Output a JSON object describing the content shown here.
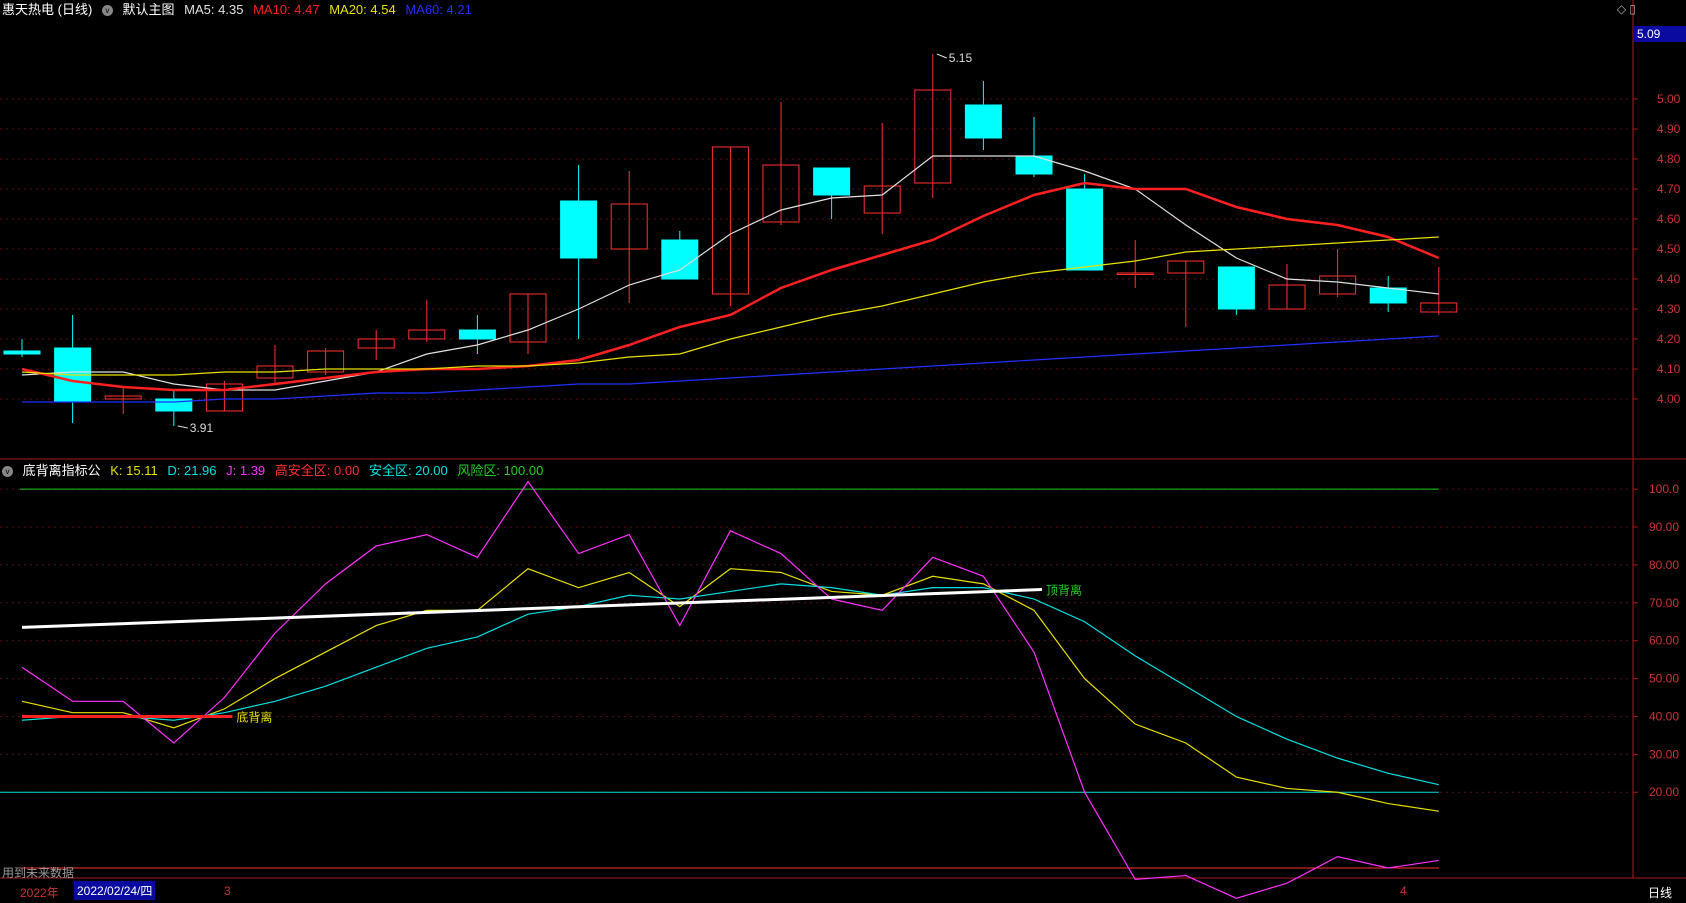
{
  "header": {
    "stock_name": "惠天热电 (日线)",
    "main_chart_label": "默认主图",
    "ma5": {
      "label": "MA5: 4.35",
      "color": "#e0e0e0"
    },
    "ma10": {
      "label": "MA10: 4.47",
      "color": "#ff2020"
    },
    "ma20": {
      "label": "MA20: 4.54",
      "color": "#e8e000"
    },
    "ma60": {
      "label": "MA60: 4.21",
      "color": "#2030ff"
    },
    "current_price_tag": "5.09"
  },
  "indicator_header": {
    "name": "底背离指标公",
    "k": {
      "label": "K: 15.11",
      "color": "#e8e000"
    },
    "d": {
      "label": "D: 21.96",
      "color": "#00e0e0"
    },
    "j": {
      "label": "J: 1.39",
      "color": "#ff30ff"
    },
    "high_safe": {
      "label": "高安全区: 0.00",
      "color": "#ff3030"
    },
    "safe": {
      "label": "安全区: 20.00",
      "color": "#00e0e0"
    },
    "risk": {
      "label": "风险区: 100.00",
      "color": "#20d020"
    }
  },
  "footer": {
    "future_data": "用到未来数据",
    "year": "2022年",
    "date": "2022/02/24/四",
    "month3": "3",
    "month4": "4",
    "period": "日线"
  },
  "chart_data": [
    {
      "type": "candlestick",
      "y_ticks": [
        "5.00",
        "4.90",
        "4.80",
        "4.70",
        "4.60",
        "4.50",
        "4.40",
        "4.30",
        "4.20",
        "4.10",
        "4.00"
      ],
      "ylim": [
        3.85,
        5.18
      ],
      "up_color": "#ff3030",
      "down_color": "#00ffff",
      "candles": [
        {
          "o": 4.16,
          "h": 4.2,
          "l": 4.14,
          "c": 4.15
        },
        {
          "o": 4.17,
          "h": 4.28,
          "l": 3.92,
          "c": 3.99
        },
        {
          "o": 4.0,
          "h": 4.04,
          "l": 3.95,
          "c": 4.01
        },
        {
          "o": 4.0,
          "h": 4.03,
          "l": 3.91,
          "c": 3.96
        },
        {
          "o": 3.96,
          "h": 4.06,
          "l": 3.96,
          "c": 4.05
        },
        {
          "o": 4.07,
          "h": 4.18,
          "l": 4.05,
          "c": 4.11
        },
        {
          "o": 4.09,
          "h": 4.17,
          "l": 4.08,
          "c": 4.16
        },
        {
          "o": 4.17,
          "h": 4.23,
          "l": 4.13,
          "c": 4.2
        },
        {
          "o": 4.2,
          "h": 4.33,
          "l": 4.19,
          "c": 4.23
        },
        {
          "o": 4.23,
          "h": 4.28,
          "l": 4.15,
          "c": 4.2
        },
        {
          "o": 4.19,
          "h": 4.35,
          "l": 4.15,
          "c": 4.35
        },
        {
          "o": 4.66,
          "h": 4.78,
          "l": 4.2,
          "c": 4.47
        },
        {
          "o": 4.5,
          "h": 4.76,
          "l": 4.32,
          "c": 4.65
        },
        {
          "o": 4.53,
          "h": 4.56,
          "l": 4.4,
          "c": 4.4
        },
        {
          "o": 4.35,
          "h": 4.84,
          "l": 4.31,
          "c": 4.84
        },
        {
          "o": 4.59,
          "h": 4.99,
          "l": 4.58,
          "c": 4.78
        },
        {
          "o": 4.77,
          "h": 4.77,
          "l": 4.6,
          "c": 4.68
        },
        {
          "o": 4.62,
          "h": 4.92,
          "l": 4.55,
          "c": 4.71
        },
        {
          "o": 4.72,
          "h": 5.15,
          "l": 4.67,
          "c": 5.03
        },
        {
          "o": 4.98,
          "h": 5.06,
          "l": 4.83,
          "c": 4.87
        },
        {
          "o": 4.81,
          "h": 4.94,
          "l": 4.74,
          "c": 4.75
        },
        {
          "o": 4.7,
          "h": 4.75,
          "l": 4.43,
          "c": 4.43
        },
        {
          "o": 4.42,
          "h": 4.53,
          "l": 4.37,
          "c": 4.42
        },
        {
          "o": 4.42,
          "h": 4.46,
          "l": 4.24,
          "c": 4.46
        },
        {
          "o": 4.44,
          "h": 4.44,
          "l": 4.28,
          "c": 4.3
        },
        {
          "o": 4.3,
          "h": 4.45,
          "l": 4.3,
          "c": 4.38
        },
        {
          "o": 4.35,
          "h": 4.5,
          "l": 4.34,
          "c": 4.41
        },
        {
          "o": 4.37,
          "h": 4.41,
          "l": 4.29,
          "c": 4.32
        },
        {
          "o": 4.29,
          "h": 4.44,
          "l": 4.28,
          "c": 4.32
        }
      ],
      "ma_series": [
        {
          "name": "MA5",
          "color": "#e0e0e0",
          "values": [
            4.08,
            4.09,
            4.09,
            4.05,
            4.03,
            4.03,
            4.06,
            4.09,
            4.15,
            4.18,
            4.23,
            4.3,
            4.38,
            4.43,
            4.55,
            4.63,
            4.67,
            4.68,
            4.81,
            4.81,
            4.81,
            4.76,
            4.7,
            4.58,
            4.47,
            4.4,
            4.39,
            4.37,
            4.35
          ]
        },
        {
          "name": "MA10",
          "color": "#ff2020",
          "values": [
            4.1,
            4.06,
            4.04,
            4.03,
            4.03,
            4.05,
            4.07,
            4.09,
            4.1,
            4.1,
            4.11,
            4.13,
            4.18,
            4.24,
            4.28,
            4.37,
            4.43,
            4.48,
            4.53,
            4.61,
            4.68,
            4.72,
            4.7,
            4.7,
            4.64,
            4.6,
            4.58,
            4.54,
            4.47
          ]
        },
        {
          "name": "MA20",
          "color": "#e8e000",
          "values": [
            4.09,
            4.08,
            4.08,
            4.08,
            4.09,
            4.09,
            4.1,
            4.1,
            4.1,
            4.11,
            4.11,
            4.12,
            4.14,
            4.15,
            4.2,
            4.24,
            4.28,
            4.31,
            4.35,
            4.39,
            4.42,
            4.44,
            4.46,
            4.49,
            4.5,
            4.51,
            4.52,
            4.53,
            4.54
          ]
        },
        {
          "name": "MA60",
          "color": "#2030ff",
          "values": [
            3.99,
            3.99,
            3.99,
            3.99,
            4.0,
            4.0,
            4.01,
            4.02,
            4.02,
            4.03,
            4.04,
            4.05,
            4.05,
            4.06,
            4.07,
            4.08,
            4.09,
            4.1,
            4.11,
            4.12,
            4.13,
            4.14,
            4.15,
            4.16,
            4.17,
            4.18,
            4.19,
            4.2,
            4.21
          ]
        }
      ],
      "annotations": [
        {
          "text": "5.15",
          "candle": 18,
          "price": 5.15
        },
        {
          "text": "3.91",
          "candle": 3,
          "price": 3.91
        }
      ]
    },
    {
      "type": "line",
      "y_ticks": [
        "100.0",
        "90.00",
        "80.00",
        "70.00",
        "60.00",
        "50.00",
        "40.00",
        "30.00",
        "20.00"
      ],
      "ylim": [
        0,
        104
      ],
      "series": [
        {
          "name": "K",
          "color": "#e8e000",
          "values": [
            44,
            41,
            41,
            37,
            42,
            50,
            57,
            64,
            68,
            68,
            79,
            74,
            78,
            69,
            79,
            78,
            73,
            72,
            77,
            75,
            68,
            50,
            38,
            33,
            24,
            21,
            20,
            17,
            15
          ]
        },
        {
          "name": "D",
          "color": "#00e0e0",
          "values": [
            39,
            40,
            40,
            39,
            41,
            44,
            48,
            53,
            58,
            61,
            67,
            69,
            72,
            71,
            73,
            75,
            74,
            72,
            74,
            74,
            71,
            65,
            56,
            48,
            40,
            34,
            29,
            25,
            22
          ]
        },
        {
          "name": "J",
          "color": "#ff30ff",
          "values": [
            53,
            44,
            44,
            33,
            45,
            62,
            75,
            85,
            88,
            82,
            102,
            83,
            88,
            64,
            89,
            83,
            71,
            68,
            82,
            77,
            57,
            20,
            -3,
            -2,
            -8,
            -4,
            3,
            0,
            2
          ]
        }
      ],
      "levels": [
        {
          "label": "风险区",
          "value": 100,
          "color": "#20d020"
        },
        {
          "label": "安全区",
          "value": 20,
          "color": "#00e0e0"
        },
        {
          "label": "高安全区",
          "value": 0,
          "color": "#ff3030"
        }
      ],
      "divergence_lines": [
        {
          "label": "底背离",
          "color": "#ff2020",
          "from": [
            0,
            40
          ],
          "to": [
            4,
            40
          ]
        },
        {
          "label": "顶背离",
          "color": "#ffffff",
          "from": [
            0,
            63.5
          ],
          "to": [
            20,
            73.5
          ]
        }
      ]
    }
  ]
}
